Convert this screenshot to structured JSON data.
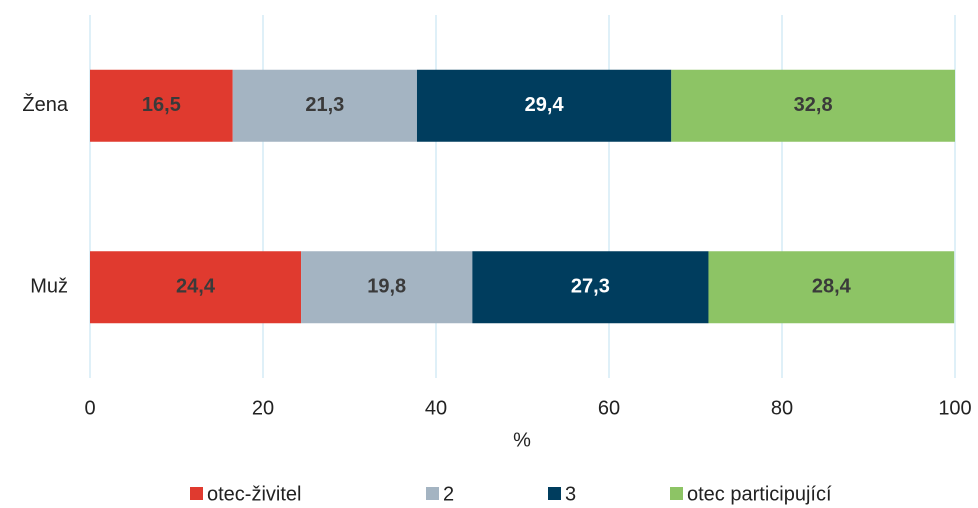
{
  "chart_data": {
    "type": "stacked-barh",
    "categories": [
      "Žena",
      "Muž"
    ],
    "series": [
      {
        "name": "otec-živitel",
        "color": "#e03a2f",
        "label_color": "#3a3a3a",
        "values": [
          16.5,
          24.4
        ],
        "value_labels": [
          "16,5",
          "24,4"
        ]
      },
      {
        "name": "2",
        "color": "#a4b4c2",
        "label_color": "#3a3a3a",
        "values": [
          21.3,
          19.8
        ],
        "value_labels": [
          "21,3",
          "19,8"
        ]
      },
      {
        "name": "3",
        "color": "#003d5e",
        "label_color": "#ffffff",
        "values": [
          29.4,
          27.3
        ],
        "value_labels": [
          "29,4",
          "27,3"
        ]
      },
      {
        "name": "otec participující",
        "color": "#8dc465",
        "label_color": "#3a3a3a",
        "values": [
          32.8,
          28.4
        ],
        "value_labels": [
          "32,8",
          "28,4"
        ]
      }
    ],
    "xlabel": "%",
    "xlim": [
      0,
      100
    ],
    "xticks": [
      0,
      20,
      40,
      60,
      80,
      100
    ],
    "grid": true,
    "legend": "bottom"
  }
}
